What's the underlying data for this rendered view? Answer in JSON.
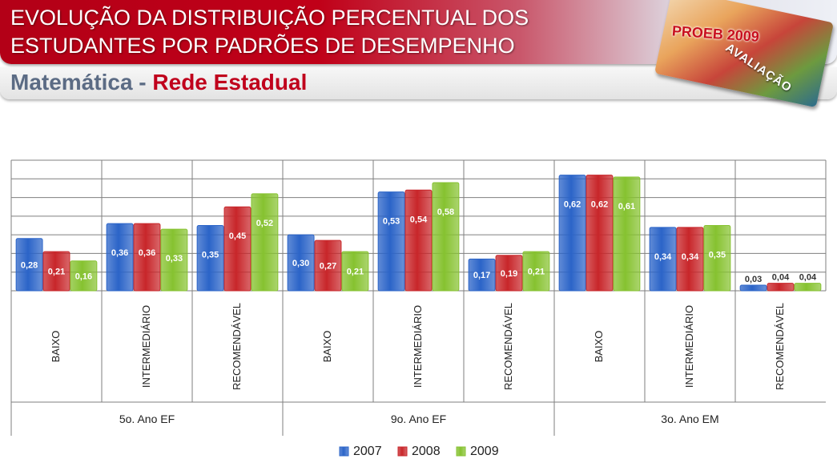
{
  "header": {
    "title_line1": "EVOLUÇÃO DA DISTRIBUIÇÃO PERCENTUAL DOS",
    "title_line2": "ESTUDANTES POR PADRÕES DE DESEMPENHO",
    "subject": "Matemática",
    "separator": "-",
    "network": "Rede Estadual"
  },
  "badge": {
    "title": "PROEB 2009",
    "subtitle": "AVALIAÇÃO"
  },
  "colors": {
    "series": [
      "#2b64c8",
      "#c8262a",
      "#86c230"
    ],
    "grid": "#7f7f7f"
  },
  "chart_data": {
    "type": "bar",
    "title": "",
    "ylim": [
      0,
      0.7
    ],
    "grid": true,
    "legend": "bottom",
    "groups": [
      "5o. Ano EF",
      "9o. Ano EF",
      "3o. Ano EM"
    ],
    "categories": [
      "BAIXO",
      "INTERMEDIÁRIO",
      "RECOMENDÁVEL",
      "BAIXO",
      "INTERMEDIÁRIO",
      "RECOMENDÁVEL",
      "BAIXO",
      "INTERMEDIÁRIO",
      "RECOMENDÁVEL"
    ],
    "series": [
      {
        "name": "2007",
        "values": [
          0.28,
          0.36,
          0.35,
          0.3,
          0.53,
          0.17,
          0.62,
          0.34,
          0.03
        ],
        "labels": [
          "0,28",
          "0,36",
          "0,35",
          "0,30",
          "0,53",
          "0,17",
          "0,62",
          "0,34",
          "0,03"
        ]
      },
      {
        "name": "2008",
        "values": [
          0.21,
          0.36,
          0.45,
          0.27,
          0.54,
          0.19,
          0.62,
          0.34,
          0.04
        ],
        "labels": [
          "0,21",
          "0,36",
          "0,45",
          "0,27",
          "0,54",
          "0,19",
          "0,62",
          "0,34",
          "0,04"
        ]
      },
      {
        "name": "2009",
        "values": [
          0.16,
          0.33,
          0.52,
          0.21,
          0.58,
          0.21,
          0.61,
          0.35,
          0.04
        ],
        "labels": [
          "0,16",
          "0,33",
          "0,52",
          "0,21",
          "0,58",
          "0,21",
          "0,61",
          "0,35",
          "0,04"
        ]
      }
    ]
  }
}
